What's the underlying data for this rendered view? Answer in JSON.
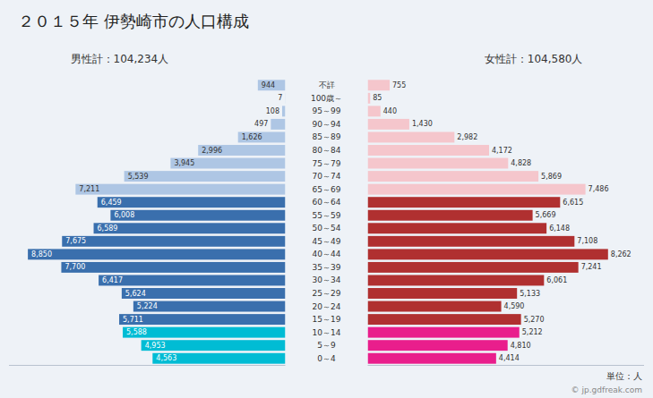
{
  "chart_data": {
    "type": "bar",
    "orientation": "horizontal",
    "title": "２０１５年 伊勢崎市の人口構成",
    "categories": [
      "0～4",
      "5～9",
      "10～14",
      "15～19",
      "20～24",
      "25～29",
      "30～34",
      "35～39",
      "40～44",
      "45～49",
      "50～54",
      "55～59",
      "60～64",
      "65～69",
      "70～74",
      "75～79",
      "80～84",
      "85～89",
      "90～94",
      "95～99",
      "100歳～",
      "不詳"
    ],
    "series": [
      {
        "name": "男性計：104,234人",
        "values": [
          4563,
          4953,
          5588,
          5711,
          5224,
          5624,
          6417,
          7700,
          8850,
          7675,
          6589,
          6008,
          6459,
          7211,
          5539,
          3945,
          2996,
          1626,
          497,
          108,
          7,
          944
        ],
        "value_labels": [
          "4,563",
          "4,953",
          "5,588",
          "5,711",
          "5,224",
          "5,624",
          "6,417",
          "7,700",
          "8,850",
          "7,675",
          "6,589",
          "6,008",
          "6,459",
          "7,211",
          "5,539",
          "3,945",
          "2,996",
          "1,626",
          "497",
          "108",
          "7",
          "944"
        ],
        "colors": [
          "#00bcd4",
          "#00bcd4",
          "#00bcd4",
          "#3a6fad",
          "#3a6fad",
          "#3a6fad",
          "#3a6fad",
          "#3a6fad",
          "#3a6fad",
          "#3a6fad",
          "#3a6fad",
          "#3a6fad",
          "#3a6fad",
          "#aec6e4",
          "#aec6e4",
          "#aec6e4",
          "#aec6e4",
          "#aec6e4",
          "#aec6e4",
          "#aec6e4",
          "#aec6e4",
          "#aec6e4"
        ]
      },
      {
        "name": "女性計：104,580人",
        "values": [
          4414,
          4810,
          5212,
          5270,
          4590,
          5133,
          6061,
          7241,
          8262,
          7108,
          6148,
          5669,
          6615,
          7486,
          5869,
          4828,
          4172,
          2982,
          1430,
          440,
          85,
          755
        ],
        "value_labels": [
          "4,414",
          "4,810",
          "5,212",
          "5,270",
          "4,590",
          "5,133",
          "6,061",
          "7,241",
          "8,262",
          "7,108",
          "6,148",
          "5,669",
          "6,615",
          "7,486",
          "5,869",
          "4,828",
          "4,172",
          "2,982",
          "1,430",
          "440",
          "85",
          "755"
        ],
        "colors": [
          "#e91e8c",
          "#e91e8c",
          "#e91e8c",
          "#b03030",
          "#b03030",
          "#b03030",
          "#b03030",
          "#b03030",
          "#b03030",
          "#b03030",
          "#b03030",
          "#b03030",
          "#b03030",
          "#f5c6cc",
          "#f5c6cc",
          "#f5c6cc",
          "#f5c6cc",
          "#f5c6cc",
          "#f5c6cc",
          "#f5c6cc",
          "#f5c6cc",
          "#f5c6cc"
        ]
      }
    ],
    "annotations": [
      "単位：人",
      "© jp.gdfreak.com"
    ],
    "xlim": [
      0,
      9500
    ],
    "data_labels": true,
    "tick_labels": false,
    "grid": false
  }
}
